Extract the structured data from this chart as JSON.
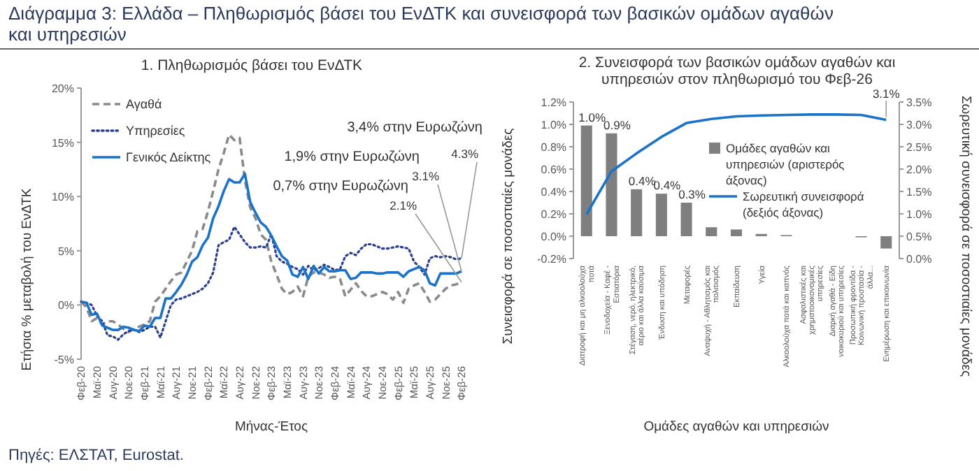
{
  "chart_data": [
    {
      "type": "other",
      "title": "Διάγραμμα 3: Ελλάδα – Πληθωρισμός βάσει του ΕνΔΤΚ και συνεισφορά των βασικών ομάδων αγαθών και υπηρεσιών",
      "annotations": [
        "Πηγές: ΕΛΣΤΑΤ, Eurostat."
      ]
    },
    {
      "type": "line",
      "title": "1. Πληθωρισμός βάσει του ΕνΔΤΚ",
      "xlabel": "Μήνας-Έτος",
      "ylabel": "Ετήσια % μεταβολή του ΕνΔΤΚ",
      "categories": [
        "Φεβ-20",
        null,
        null,
        "Μαϊ-20",
        null,
        null,
        "Αυγ-20",
        null,
        null,
        "Νοε-20",
        null,
        null,
        "Φεβ-21",
        null,
        null,
        "Μαϊ-21",
        null,
        null,
        "Αυγ-21",
        null,
        null,
        "Νοε-21",
        null,
        null,
        "Φεβ-22",
        null,
        null,
        "Μαϊ-22",
        null,
        null,
        "Αυγ-22",
        null,
        null,
        "Νοε-22",
        null,
        null,
        "Φεβ-23",
        null,
        null,
        "Μαϊ-23",
        null,
        null,
        "Αυγ-23",
        null,
        null,
        "Νοε-23",
        null,
        null,
        "Φεβ-24",
        null,
        null,
        "Μαϊ-24",
        null,
        null,
        "Αυγ-24",
        null,
        null,
        "Νοε-24",
        null,
        null,
        "Φεβ-25",
        null,
        null,
        "Μαϊ-25",
        null,
        null,
        "Αυγ-25",
        null,
        null,
        "Νοε-25",
        null,
        null,
        "Φεβ-26"
      ],
      "series": [
        {
          "name": "Αγαθά",
          "color": "#8a8a8a",
          "line_style": "dashed",
          "values": [
            0.3,
            -0.2,
            -1.5,
            -1.2,
            -1.8,
            -1.5,
            -1.5,
            -1.8,
            -2.2,
            -2.5,
            -2.2,
            -2.0,
            -1.8,
            -1.5,
            0.3,
            0.8,
            1.5,
            2.2,
            2.8,
            3.0,
            4.0,
            5.0,
            6.8,
            7.0,
            8.6,
            10.5,
            12.5,
            14.0,
            15.7,
            15.2,
            15.4,
            11.5,
            9.0,
            8.0,
            6.5,
            6.0,
            4.0,
            2.8,
            1.5,
            1.0,
            1.2,
            1.7,
            0.8,
            2.6,
            3.0,
            3.0,
            2.8,
            2.5,
            2.6,
            2.4,
            0.8,
            1.4,
            2.0,
            1.3,
            0.8,
            0.8,
            1.0,
            1.2,
            1.0,
            0.5,
            1.2,
            0.2,
            1.5,
            1.8,
            2.0,
            1.2,
            0.3,
            0.5,
            1.0,
            1.5,
            1.8,
            1.9,
            2.1
          ]
        },
        {
          "name": "Υπηρεσίες",
          "color": "#2b3f8f",
          "line_style": "dotted",
          "values": [
            0.3,
            0.2,
            0.0,
            -1.0,
            -1.5,
            -2.8,
            -2.9,
            -3.2,
            -2.7,
            -2.4,
            -2.3,
            -2.5,
            -2.3,
            -2.0,
            -2.0,
            -3.0,
            -1.5,
            0.0,
            0.5,
            0.6,
            0.8,
            1.0,
            1.2,
            1.5,
            2.0,
            3.0,
            5.5,
            5.8,
            6.0,
            7.2,
            6.5,
            5.8,
            5.3,
            5.3,
            5.4,
            5.3,
            6.5,
            4.5,
            4.0,
            3.8,
            3.5,
            3.3,
            2.8,
            3.6,
            3.2,
            3.4,
            3.7,
            3.5,
            3.2,
            3.3,
            4.5,
            4.8,
            4.6,
            5.2,
            5.6,
            5.6,
            5.4,
            5.2,
            5.2,
            5.3,
            5.4,
            5.3,
            5.2,
            4.0,
            3.5,
            2.8,
            4.3,
            4.5,
            4.4,
            4.5,
            4.4,
            4.2,
            4.3
          ]
        },
        {
          "name": "Γενικός Δείκτης",
          "color": "#1a73c9",
          "line_style": "solid",
          "values": [
            0.3,
            0.2,
            -0.9,
            -0.8,
            -1.9,
            -2.1,
            -2.3,
            -2.3,
            -2.0,
            -2.1,
            -2.3,
            -2.4,
            -1.9,
            -2.0,
            -1.2,
            -1.2,
            0.6,
            0.6,
            1.2,
            1.9,
            2.8,
            4.0,
            4.4,
            5.5,
            6.2,
            8.0,
            9.1,
            10.5,
            11.6,
            11.3,
            11.3,
            12.1,
            9.5,
            8.5,
            7.6,
            7.2,
            6.4,
            5.4,
            4.5,
            4.1,
            2.8,
            2.6,
            3.5,
            2.4,
            3.6,
            2.9,
            3.5,
            3.1,
            3.1,
            3.2,
            3.2,
            2.4,
            2.5,
            3.0,
            3.0,
            3.0,
            2.9,
            2.9,
            3.0,
            3.0,
            3.0,
            2.6,
            3.1,
            3.3,
            3.5,
            3.2,
            2.0,
            1.8,
            2.9,
            2.9,
            2.9,
            2.9,
            3.1
          ]
        }
      ],
      "ylim": [
        -5,
        20
      ],
      "yticks": [
        {
          "value": -5,
          "label": "-5%"
        },
        {
          "value": 0,
          "label": "0%"
        },
        {
          "value": 5,
          "label": "5%"
        },
        {
          "value": 10,
          "label": "10%"
        },
        {
          "value": 15,
          "label": "15%"
        },
        {
          "value": 20,
          "label": "20%"
        }
      ],
      "legend": "top left",
      "annotations": [
        "3,4% στην Ευρωζώνη",
        "1,9% στην Ευρωζώνη",
        "0,7% στην Ευρωζώνη",
        {
          "text": "3.1%",
          "x": "Φεβ-26",
          "y": 3.1
        },
        {
          "text": "2.1%",
          "x": "Φεβ-26",
          "y": 2.1
        },
        {
          "text": "4.3%",
          "x": "Φεβ-26",
          "y": 4.3
        }
      ]
    },
    {
      "type": "bar",
      "title": "2. Συνεισφορά των βασικών ομάδων αγαθών και υπηρεσιών στον πληθωρισμό του Φεβ-26",
      "xlabel": "Ομάδες αγαθών και υπηρεσιών",
      "ylabel": "Συνεισφορά σε ποσοστιαίες μονάδες",
      "y2label": "Σωρευτική συνεισφορά σε ποσοστιαίες μονάδες",
      "categories": [
        "Διατροφή και μη αλκοολούχα ποτά",
        "Ξενοδοχεία - Καφέ - Εστιατόρια",
        "Στέγαση, νερό, ηλεκτρικό, αέριο και άλλα καύσιμα",
        "Ένδυση και υπόδηση",
        "Μεταφορές",
        "Αναψυχή - Αθλητισμός και πολιτισμός",
        "Εκπαίδευση",
        "Υγεία",
        "Αλκοολούχα ποτά και καπνός",
        "Ασφαλιστικές και χρηματοοικονομικές υπηρεσίες",
        "Διαρκή αγαθά - Είδη νοικοκυριού και υπηρεσίες",
        "Προσωπική φροντίδα - Κοινωνική προστασία - άλλα...",
        "Ενημέρωση και επικοινωνία"
      ],
      "series": [
        {
          "name": "Ομάδες αγαθών και υπηρεσιών (αριστερός άξονας)",
          "color": "#7f7f7f",
          "values": [
            0.99,
            0.92,
            0.42,
            0.38,
            0.3,
            0.08,
            0.06,
            0.02,
            0.01,
            0.0,
            0.0,
            -0.01,
            -0.11
          ],
          "value_labels": [
            "1.0%",
            "0.9%",
            "0.4%",
            "0.4%",
            "0.3%",
            null,
            null,
            null,
            null,
            null,
            null,
            null,
            null
          ]
        },
        {
          "name": "Σωρευτική συνεισφορά (δεξιός άξονας)",
          "type": "line",
          "axis": "y2",
          "color": "#1a73c9",
          "values": [
            0.99,
            1.95,
            2.35,
            2.72,
            3.03,
            3.12,
            3.18,
            3.2,
            3.21,
            3.22,
            3.22,
            3.21,
            3.1
          ],
          "value_labels": [
            null,
            null,
            null,
            null,
            null,
            null,
            null,
            null,
            null,
            null,
            null,
            null,
            "3.1%"
          ]
        }
      ],
      "ylim": [
        -0.2,
        1.2
      ],
      "yticks": [
        {
          "value": -0.2,
          "label": "-0.2%"
        },
        {
          "value": 0,
          "label": "0.0%"
        },
        {
          "value": 0.2,
          "label": "0.2%"
        },
        {
          "value": 0.4,
          "label": "0.4%"
        },
        {
          "value": 0.6,
          "label": "0.6%"
        },
        {
          "value": 0.8,
          "label": "0.8%"
        },
        {
          "value": 1.0,
          "label": "1.0%"
        },
        {
          "value": 1.2,
          "label": "1.2%"
        }
      ],
      "y2lim": [
        0,
        3.5
      ],
      "y2ticks": [
        {
          "value": 0,
          "label": "0.0%"
        },
        {
          "value": 0.5,
          "label": "0.5%"
        },
        {
          "value": 1.0,
          "label": "1.0%"
        },
        {
          "value": 1.5,
          "label": "1.5%"
        },
        {
          "value": 2.0,
          "label": "2.0%"
        },
        {
          "value": 2.5,
          "label": "2.5%"
        },
        {
          "value": 3.0,
          "label": "3.0%"
        },
        {
          "value": 3.5,
          "label": "3.5%"
        }
      ],
      "legend": "right"
    }
  ]
}
